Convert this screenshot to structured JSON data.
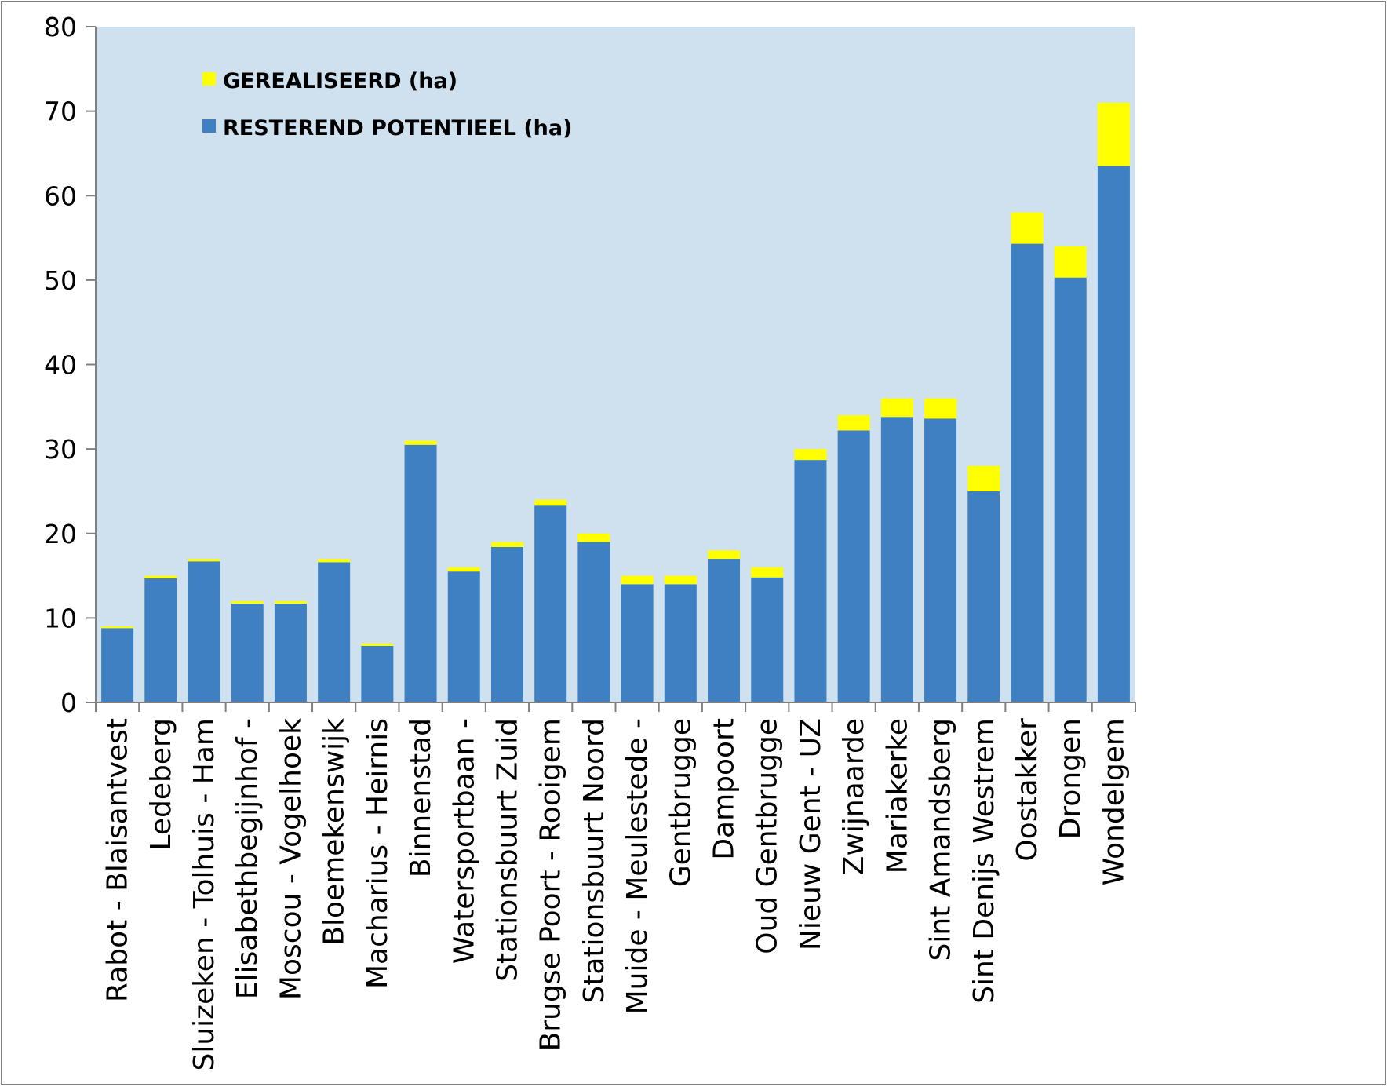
{
  "chart_data": {
    "type": "bar",
    "stacked": true,
    "title": "",
    "xlabel": "",
    "ylabel": "",
    "ylim": [
      0,
      80
    ],
    "yticks": [
      0,
      10,
      20,
      30,
      40,
      50,
      60,
      70,
      80
    ],
    "grid": false,
    "legend_position": "top-left",
    "plot_background": "#cfe0ee",
    "categories": [
      "Rabot - Blaisantvest",
      "Ledeberg",
      "Sluizeken - Tolhuis - Ham",
      "Elisabethbegijnhof -",
      "Moscou - Vogelhoek",
      "Bloemekenswijk",
      "Macharius - Heirnis",
      "Binnenstad",
      "Watersportbaan -",
      "Stationsbuurt Zuid",
      "Brugse Poort - Rooigem",
      "Stationsbuurt Noord",
      "Muide - Meulestede -",
      "Gentbrugge",
      "Dampoort",
      "Oud Gentbrugge",
      "Nieuw Gent - UZ",
      "Zwijnaarde",
      "Mariakerke",
      "Sint Amandsberg",
      "Sint Denijs Westrem",
      "Oostakker",
      "Drongen",
      "Wondelgem"
    ],
    "series": [
      {
        "name": "RESTEREND POTENTIEEL (ha)",
        "color": "#3e80c2",
        "values": [
          8.8,
          14.7,
          16.7,
          11.7,
          11.7,
          16.6,
          6.7,
          30.5,
          15.5,
          18.4,
          23.3,
          19.0,
          14.0,
          14.0,
          17.0,
          14.8,
          28.7,
          32.2,
          33.8,
          33.6,
          25.0,
          54.3,
          50.3,
          63.5
        ]
      },
      {
        "name": "GEREALISEERD (ha)",
        "color": "#ffff00",
        "values": [
          0.2,
          0.3,
          0.3,
          0.3,
          0.3,
          0.4,
          0.3,
          0.5,
          0.5,
          0.6,
          0.7,
          1.0,
          1.0,
          1.0,
          1.0,
          1.2,
          1.3,
          1.8,
          2.2,
          2.4,
          3.0,
          3.7,
          3.7,
          7.5
        ]
      }
    ],
    "legend": [
      {
        "label": "GEREALISEERD (ha)",
        "color": "#ffff00"
      },
      {
        "label": "RESTEREND POTENTIEEL (ha)",
        "color": "#3e80c2"
      }
    ]
  }
}
